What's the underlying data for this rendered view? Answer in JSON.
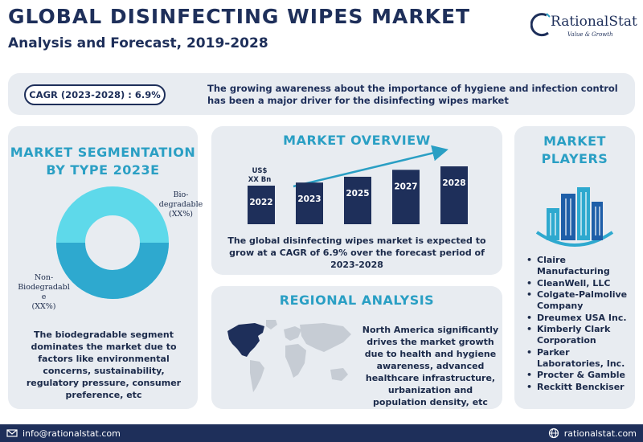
{
  "header": {
    "title": "GLOBAL DISINFECTING WIPES MARKET",
    "subtitle": "Analysis and Forecast, 2019-2028"
  },
  "logo": {
    "name": "RationalStat",
    "tagline": "Value & Growth"
  },
  "cagr": {
    "pill": "CAGR (2023-2028) : 6.9%",
    "text": "The growing awareness about the importance of hygiene and infection control has been a major driver for the disinfecting wipes market"
  },
  "segmentation": {
    "title_line1": "MARKET SEGMENTATION",
    "title_line2": "BY TYPE 2023E",
    "label_bio_line1": "Bio-",
    "label_bio_line2": "degradable",
    "label_bio_line3": "(XX%)",
    "label_nonbio_line1": "Non-",
    "label_nonbio_line2": "Biodegradabl",
    "label_nonbio_line3": "e",
    "label_nonbio_line4": "(XX%)",
    "text": "The biodegradable segment dominates the market due to factors like environmental concerns, sustainability, regulatory pressure, consumer preference, etc",
    "colors": {
      "bio": "#5ed9ea",
      "nonbio": "#2ea9cf"
    }
  },
  "overview": {
    "title": "MARKET OVERVIEW",
    "unit_line1": "US$",
    "unit_line2": "XX Bn",
    "text": "The global disinfecting wipes market is expected to grow at a CAGR of 6.9% over the forecast period of 2023-2028",
    "bar_color": "#1e2f5a",
    "arrow_color": "#2a9fc4"
  },
  "chart_data": {
    "type": "bar",
    "categories": [
      "2022",
      "2023",
      "2025",
      "2027",
      "2028"
    ],
    "values": [
      1,
      1.08,
      1.23,
      1.41,
      1.5
    ]
  },
  "regional": {
    "title": "REGIONAL ANALYSIS",
    "text": "North America significantly drives the market growth due to health and hygiene awareness, advanced healthcare infrastructure, urbanization and population density, etc"
  },
  "players": {
    "title_line1": "MARKET",
    "title_line2": "PLAYERS",
    "items": [
      "Claire Manufacturing",
      "CleanWell, LLC",
      "Colgate-Palmolive Company",
      "Dreumex USA Inc.",
      "Kimberly Clark Corporation",
      "Parker Laboratories, Inc.",
      "Procter & Gamble",
      "Reckitt Benckiser"
    ]
  },
  "footer": {
    "email": "info@rationalstat.com",
    "website": "rationalstat.com"
  }
}
